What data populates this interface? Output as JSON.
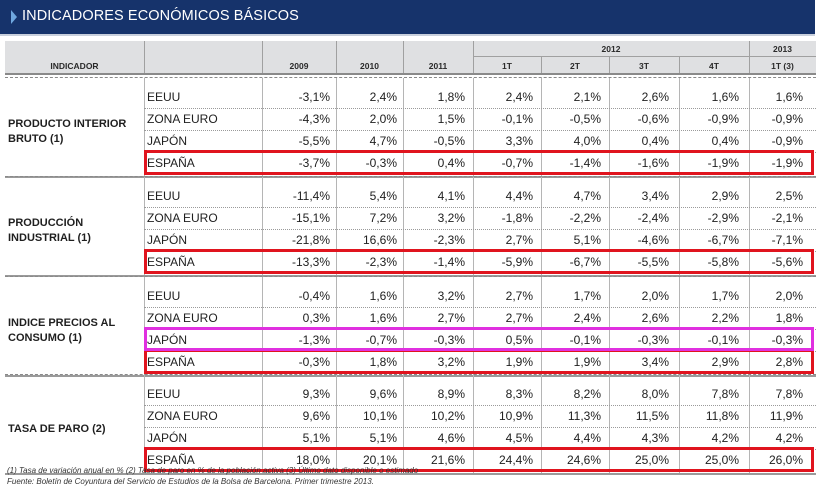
{
  "title": "INDICADORES ECONÓMICOS BÁSICOS",
  "colors": {
    "title_bar": "#16336b",
    "header_bg": "#dfe0e2",
    "highlight_red": "#e0141e",
    "highlight_magenta": "#e030e0"
  },
  "header": {
    "indicator": "INDICADOR",
    "group_2012": "2012",
    "group_2013": "2013",
    "columns": [
      "2009",
      "2010",
      "2011",
      "1T",
      "2T",
      "3T",
      "4T",
      "1T (3)"
    ]
  },
  "sections": [
    {
      "indicator": "PRODUCTO INTERIOR\nBRUTO (1)",
      "rows": [
        {
          "country": "EEUU",
          "values": [
            "-3,1%",
            "2,4%",
            "1,8%",
            "2,4%",
            "2,1%",
            "2,6%",
            "1,6%",
            "1,6%"
          ]
        },
        {
          "country": "ZONA EURO",
          "values": [
            "-4,3%",
            "2,0%",
            "1,5%",
            "-0,1%",
            "-0,5%",
            "-0,6%",
            "-0,9%",
            "-0,9%"
          ]
        },
        {
          "country": "JAPÓN",
          "values": [
            "-5,5%",
            "4,7%",
            "-0,5%",
            "3,3%",
            "4,0%",
            "0,4%",
            "0,4%",
            "-0,9%"
          ]
        },
        {
          "country": "ESPAÑA",
          "values": [
            "-3,7%",
            "-0,3%",
            "0,4%",
            "-0,7%",
            "-1,4%",
            "-1,6%",
            "-1,9%",
            "-1,9%"
          ]
        }
      ]
    },
    {
      "indicator": "PRODUCCIÓN\nINDUSTRIAL (1)",
      "rows": [
        {
          "country": "EEUU",
          "values": [
            "-11,4%",
            "5,4%",
            "4,1%",
            "4,4%",
            "4,7%",
            "3,4%",
            "2,9%",
            "2,5%"
          ]
        },
        {
          "country": "ZONA EURO",
          "values": [
            "-15,1%",
            "7,2%",
            "3,2%",
            "-1,8%",
            "-2,2%",
            "-2,4%",
            "-2,9%",
            "-2,1%"
          ]
        },
        {
          "country": "JAPÓN",
          "values": [
            "-21,8%",
            "16,6%",
            "-2,3%",
            "2,7%",
            "5,1%",
            "-4,6%",
            "-6,7%",
            "-7,1%"
          ]
        },
        {
          "country": "ESPAÑA",
          "values": [
            "-13,3%",
            "-2,3%",
            "-1,4%",
            "-5,9%",
            "-6,7%",
            "-5,5%",
            "-5,8%",
            "-5,6%"
          ]
        }
      ]
    },
    {
      "indicator": "INDICE PRECIOS AL\nCONSUMO (1)",
      "rows": [
        {
          "country": "EEUU",
          "values": [
            "-0,4%",
            "1,6%",
            "3,2%",
            "2,7%",
            "1,7%",
            "2,0%",
            "1,7%",
            "2,0%"
          ]
        },
        {
          "country": "ZONA EURO",
          "values": [
            "0,3%",
            "1,6%",
            "2,7%",
            "2,7%",
            "2,4%",
            "2,6%",
            "2,2%",
            "1,8%"
          ]
        },
        {
          "country": "JAPÓN",
          "values": [
            "-1,3%",
            "-0,7%",
            "-0,3%",
            "0,5%",
            "-0,1%",
            "-0,3%",
            "-0,1%",
            "-0,3%"
          ]
        },
        {
          "country": "ESPAÑA",
          "values": [
            "-0,3%",
            "1,8%",
            "3,2%",
            "1,9%",
            "1,9%",
            "3,4%",
            "2,9%",
            "2,8%"
          ]
        }
      ]
    },
    {
      "indicator": "TASA DE PARO (2)",
      "rows": [
        {
          "country": "EEUU",
          "values": [
            "9,3%",
            "9,6%",
            "8,9%",
            "8,3%",
            "8,2%",
            "8,0%",
            "7,8%",
            "7,8%"
          ]
        },
        {
          "country": "ZONA EURO",
          "values": [
            "9,6%",
            "10,1%",
            "10,2%",
            "10,9%",
            "11,3%",
            "11,5%",
            "11,8%",
            "11,9%"
          ]
        },
        {
          "country": "JAPÓN",
          "values": [
            "5,1%",
            "5,1%",
            "4,6%",
            "4,5%",
            "4,4%",
            "4,3%",
            "4,2%",
            "4,2%"
          ]
        },
        {
          "country": "ESPAÑA",
          "values": [
            "18,0%",
            "20,1%",
            "21,6%",
            "24,4%",
            "24,6%",
            "25,0%",
            "25,0%",
            "26,0%"
          ]
        }
      ]
    }
  ],
  "footnotes": [
    "(1) Tasa de variación anual en % (2) Tasa de paro en % de la población activa (3) Último dato disponible o estimado",
    "Fuente: Boletín de Coyuntura del Servicio de Estudios de la Bolsa de Barcelona. Primer trimestre 2013."
  ]
}
